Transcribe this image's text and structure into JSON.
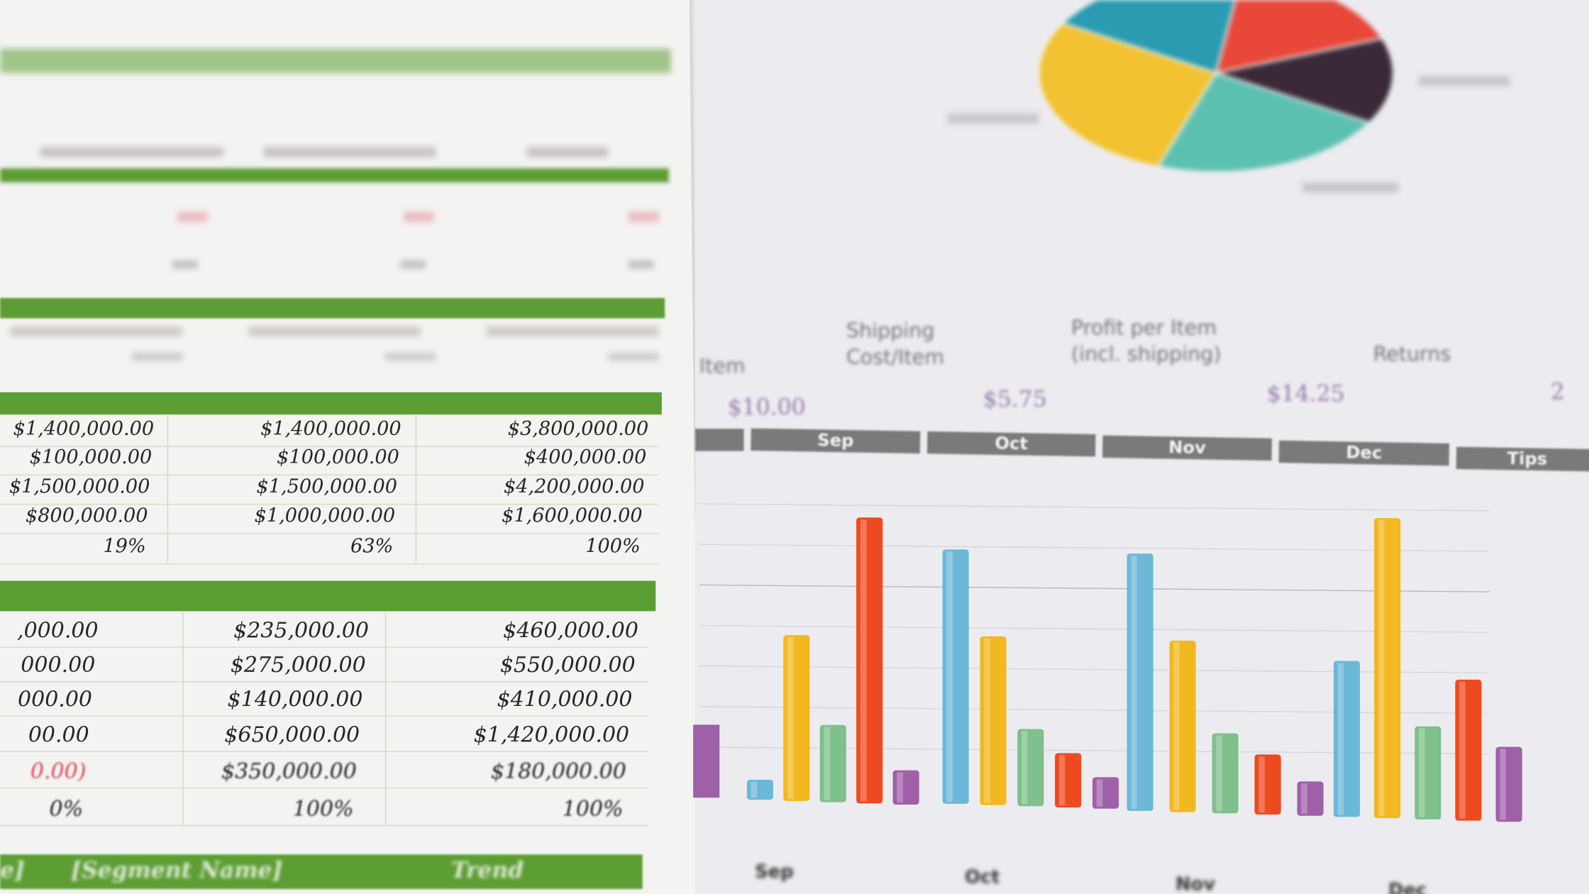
{
  "left_sheet": {
    "table1": {
      "rows": [
        [
          "$1,400,000.00",
          "$1,400,000.00",
          "$3,800,000.00"
        ],
        [
          "$100,000.00",
          "$100,000.00",
          "$400,000.00"
        ],
        [
          "$1,500,000.00",
          "$1,500,000.00",
          "$4,200,000.00"
        ],
        [
          "$800,000.00",
          "$1,000,000.00",
          "$1,600,000.00"
        ],
        [
          "19%",
          "63%",
          "100%"
        ]
      ]
    },
    "table2": {
      "rows": [
        [
          ",000.00",
          "$235,000.00",
          "$460,000.00"
        ],
        [
          "000.00",
          "$275,000.00",
          "$550,000.00"
        ],
        [
          "000.00",
          "$140,000.00",
          "$410,000.00"
        ],
        [
          "00.00",
          "$650,000.00",
          "$1,420,000.00"
        ],
        [
          "0.00)",
          "$350,000.00",
          "$180,000.00"
        ],
        [
          "0%",
          "100%",
          "100%"
        ]
      ]
    },
    "footer_headers": [
      "e]",
      "[Segment Name]",
      "Trend"
    ],
    "accent_color": "#5c9e34"
  },
  "right_sheet": {
    "headers": {
      "item": "Item",
      "shipping_line1": "Shipping",
      "shipping_line2": "Cost/Item",
      "profit_line1": "Profit per Item",
      "profit_line2": "(incl. shipping)",
      "returns": "Returns"
    },
    "values": {
      "item": "$10.00",
      "shipping": "$5.75",
      "profit": "$14.25",
      "returns": "2"
    },
    "months": [
      "Sep",
      "Oct",
      "Nov",
      "Dec",
      "Tips"
    ],
    "bottom_labels": [
      "Sep",
      "Oct",
      "Nov",
      "Dec"
    ]
  },
  "chart_data": [
    {
      "type": "pie",
      "colors": [
        "#2a9bb0",
        "#e8473a",
        "#3a2a38",
        "#5cc0b0",
        "#f2c230"
      ],
      "values": [
        19,
        17,
        14,
        22,
        28
      ]
    },
    {
      "type": "bar",
      "categories": [
        "Sep",
        "Oct",
        "Nov",
        "Dec"
      ],
      "series_colors": [
        "#6cb8d8",
        "#f2b820",
        "#7fc08c",
        "#ee4a20",
        "#a060a8"
      ],
      "values": [
        [
          7,
          58,
          27,
          100,
          12
        ],
        [
          89,
          59,
          27,
          19,
          11
        ],
        [
          90,
          60,
          28,
          21,
          12
        ],
        [
          52,
          100,
          31,
          47,
          25
        ]
      ]
    }
  ]
}
